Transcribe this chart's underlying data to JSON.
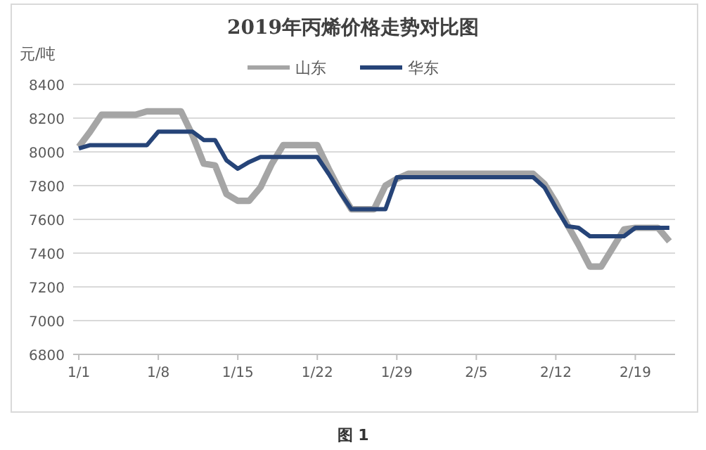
{
  "chart_data": {
    "type": "line",
    "title": "2019年丙烯价格走势对比图",
    "ylabel": "元/吨",
    "annotations": [
      "图 1"
    ],
    "categories": [
      "1/1",
      null,
      null,
      null,
      null,
      null,
      null,
      "1/8",
      null,
      null,
      null,
      null,
      null,
      null,
      "1/15",
      null,
      null,
      null,
      null,
      null,
      null,
      "1/22",
      null,
      null,
      null,
      null,
      null,
      null,
      "1/29",
      null,
      null,
      null,
      null,
      null,
      null,
      "2/5",
      null,
      null,
      null,
      null,
      null,
      null,
      "2/12",
      null,
      null,
      null,
      null,
      null,
      null,
      "2/19",
      null,
      null,
      null
    ],
    "series": [
      {
        "name": "山东",
        "color": "#a5a5a5",
        "values": [
          8030,
          8120,
          8220,
          8220,
          8220,
          8220,
          8240,
          8240,
          8240,
          8240,
          8100,
          7930,
          7920,
          7750,
          7710,
          7710,
          7790,
          7930,
          8040,
          8040,
          8040,
          8040,
          7900,
          7770,
          7660,
          7660,
          7660,
          7800,
          7840,
          7870,
          7870,
          7870,
          7870,
          7870,
          7870,
          7870,
          7870,
          7870,
          7870,
          7870,
          7870,
          7810,
          7700,
          7570,
          7450,
          7320,
          7320,
          7430,
          7540,
          7550,
          7550,
          7550,
          7470
        ]
      },
      {
        "name": "华东",
        "color": "#264478",
        "values": [
          8020,
          8040,
          8040,
          8040,
          8040,
          8040,
          8040,
          8120,
          8120,
          8120,
          8120,
          8070,
          8070,
          7950,
          7900,
          7940,
          7970,
          7970,
          7970,
          7970,
          7970,
          7970,
          7870,
          7760,
          7660,
          7660,
          7660,
          7660,
          7850,
          7850,
          7850,
          7850,
          7850,
          7850,
          7850,
          7850,
          7850,
          7850,
          7850,
          7850,
          7850,
          7790,
          7670,
          7560,
          7550,
          7500,
          7500,
          7500,
          7500,
          7550,
          7550,
          7550,
          7550
        ]
      }
    ],
    "ylim": [
      6800,
      8400
    ],
    "yticks": [
      6800,
      7000,
      7200,
      7400,
      7600,
      7800,
      8000,
      8200,
      8400
    ],
    "grid": "y",
    "legend": "top",
    "line_style": "solid",
    "marker": "none"
  }
}
